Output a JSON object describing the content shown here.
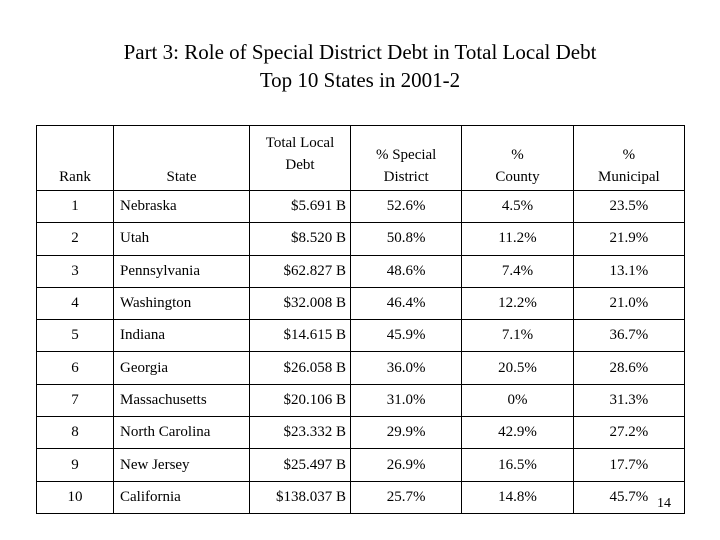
{
  "title": {
    "line1": "Part 3: Role of Special District Debt in Total Local Debt",
    "line2": "Top 10 States in  2001-2"
  },
  "table": {
    "headers": {
      "rank": "Rank",
      "state": "State",
      "debt_line1": "Total Local",
      "debt_line2": "Debt",
      "special_line1": "% Special",
      "special_line2": "District",
      "county_line1": "%",
      "county_line2": "County",
      "municipal_line1": "%",
      "municipal_line2": "Municipal"
    },
    "rows": [
      {
        "rank": "1",
        "state": "Nebraska",
        "debt": "$5.691 B",
        "special": "52.6%",
        "county": "4.5%",
        "municipal": "23.5%"
      },
      {
        "rank": "2",
        "state": "Utah",
        "debt": "$8.520 B",
        "special": "50.8%",
        "county": "11.2%",
        "municipal": "21.9%"
      },
      {
        "rank": "3",
        "state": "Pennsylvania",
        "debt": "$62.827 B",
        "special": "48.6%",
        "county": "7.4%",
        "municipal": "13.1%"
      },
      {
        "rank": "4",
        "state": "Washington",
        "debt": "$32.008 B",
        "special": "46.4%",
        "county": "12.2%",
        "municipal": "21.0%"
      },
      {
        "rank": "5",
        "state": "Indiana",
        "debt": "$14.615 B",
        "special": "45.9%",
        "county": "7.1%",
        "municipal": "36.7%"
      },
      {
        "rank": "6",
        "state": "Georgia",
        "debt": "$26.058 B",
        "special": "36.0%",
        "county": "20.5%",
        "municipal": "28.6%"
      },
      {
        "rank": "7",
        "state": "Massachusetts",
        "debt": "$20.106 B",
        "special": "31.0%",
        "county": "0%",
        "municipal": "31.3%"
      },
      {
        "rank": "8",
        "state": "North Carolina",
        "debt": "$23.332 B",
        "special": "29.9%",
        "county": "42.9%",
        "municipal": "27.2%"
      },
      {
        "rank": "9",
        "state": "New Jersey",
        "debt": "$25.497 B",
        "special": "26.9%",
        "county": "16.5%",
        "municipal": "17.7%"
      },
      {
        "rank": "10",
        "state": "California",
        "debt": "$138.037 B",
        "special": "25.7%",
        "county": "14.8%",
        "municipal": "45.7%"
      }
    ]
  },
  "page_number": "14"
}
